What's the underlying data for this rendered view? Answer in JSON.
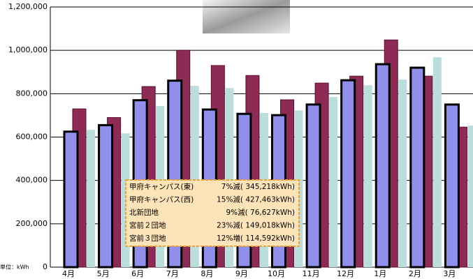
{
  "chart_data": {
    "type": "bar",
    "categories": [
      "4月",
      "5月",
      "6月",
      "7月",
      "8月",
      "9月",
      "10月",
      "11月",
      "12月",
      "1月",
      "2月",
      "3月"
    ],
    "series": [
      {
        "color": "#9090ec",
        "values": [
          625000,
          655000,
          770000,
          860000,
          727000,
          707000,
          701000,
          750000,
          862000,
          936000,
          920000,
          750000
        ]
      },
      {
        "color": "#8e2b55",
        "values": [
          730000,
          690000,
          833000,
          1000000,
          930000,
          884000,
          772000,
          849000,
          881000,
          1048000,
          881000,
          646000
        ]
      },
      {
        "color": "#b9dedb",
        "values": [
          633000,
          617000,
          743000,
          836000,
          826000,
          711000,
          723000,
          785000,
          839000,
          865000,
          968000,
          653000
        ]
      }
    ],
    "ylim": [
      0,
      1200000
    ],
    "yticks": [
      {
        "value": 0,
        "label": "0"
      },
      {
        "value": 200000,
        "label": "200,000"
      },
      {
        "value": 400000,
        "label": "400,000"
      },
      {
        "value": 600000,
        "label": "600,000"
      },
      {
        "value": 800000,
        "label": "800,000"
      },
      {
        "value": 1000000,
        "label": "1,000,000"
      },
      {
        "value": 1200000,
        "label": "1,200,000"
      }
    ],
    "grid": true,
    "unit_label": "単位：kWh",
    "annotation_rows": [
      [
        "甲府キャンパス(東)",
        "7%減( 345,218kWh)"
      ],
      [
        "甲府キャンパス(西)",
        "15%減( 427,463kWh)"
      ],
      [
        "北新団地",
        "9%減(  76,627kWh)"
      ],
      [
        "宮前２団地",
        "23%減( 149,018kWh)"
      ],
      [
        "宮前３団地",
        "12%増( 114,592kWh)"
      ]
    ]
  }
}
